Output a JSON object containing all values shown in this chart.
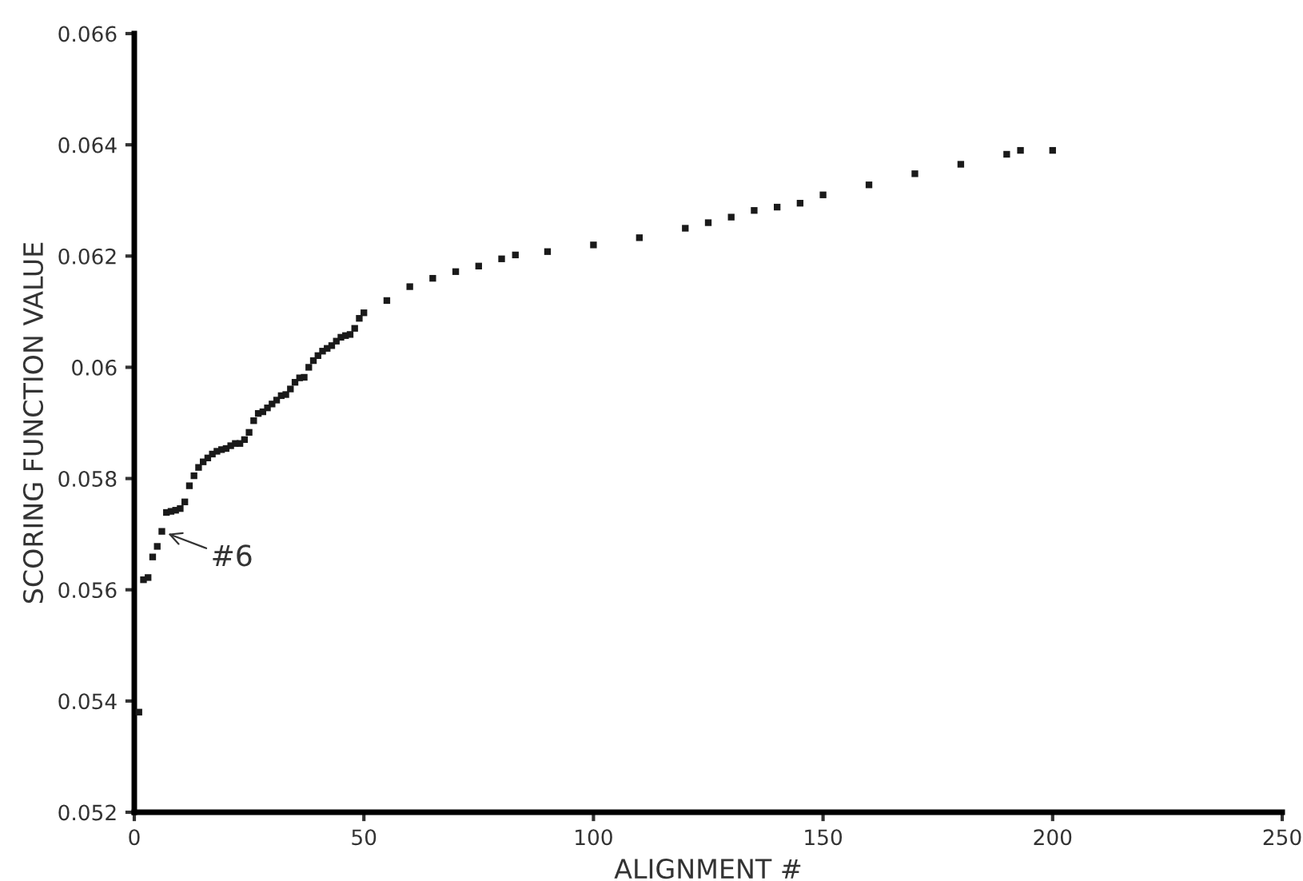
{
  "chart_data": {
    "type": "scatter",
    "xlabel": "ALIGNMENT #",
    "ylabel": "SCORING FUNCTION VALUE",
    "x": [
      1,
      2,
      3,
      4,
      5,
      6,
      7,
      8,
      9,
      10,
      11,
      12,
      13,
      14,
      15,
      16,
      17,
      18,
      19,
      20,
      21,
      22,
      23,
      24,
      25,
      26,
      27,
      28,
      29,
      30,
      31,
      32,
      33,
      34,
      35,
      36,
      37,
      38,
      39,
      40,
      41,
      42,
      43,
      44,
      45,
      46,
      47,
      48,
      49,
      50,
      55,
      60,
      65,
      70,
      75,
      80,
      83,
      90,
      100,
      110,
      120,
      125,
      130,
      135,
      140,
      145,
      150,
      160,
      170,
      180,
      190,
      193,
      200
    ],
    "series": [
      {
        "color": "#1a1a1a",
        "values": [
          0.0538,
          0.05618,
          0.05622,
          0.05659,
          0.05678,
          0.05705,
          0.05739,
          0.05741,
          0.05743,
          0.05746,
          0.05758,
          0.05787,
          0.05805,
          0.0582,
          0.0583,
          0.05837,
          0.05844,
          0.05849,
          0.05852,
          0.05854,
          0.05859,
          0.05863,
          0.05863,
          0.0587,
          0.05883,
          0.05904,
          0.05917,
          0.0592,
          0.05927,
          0.05934,
          0.05941,
          0.05949,
          0.05951,
          0.05961,
          0.05973,
          0.05981,
          0.05982,
          0.06,
          0.06012,
          0.06021,
          0.06029,
          0.06034,
          0.06039,
          0.06047,
          0.06054,
          0.06057,
          0.06059,
          0.0607,
          0.06088,
          0.06098,
          0.0612,
          0.06145,
          0.0616,
          0.06172,
          0.06182,
          0.06195,
          0.06202,
          0.06208,
          0.0622,
          0.06233,
          0.0625,
          0.0626,
          0.0627,
          0.06282,
          0.06288,
          0.06295,
          0.0631,
          0.06328,
          0.06348,
          0.06365,
          0.06383,
          0.0639,
          0.0639
        ]
      }
    ],
    "marker": "square",
    "grid": false,
    "xlim": [
      0,
      250
    ],
    "xticks": [
      0,
      50,
      100,
      150,
      200,
      250
    ],
    "ylim": [
      0.052,
      0.066
    ],
    "yticks": [
      {
        "value": 0.052,
        "label": "0.052"
      },
      {
        "value": 0.054,
        "label": "0.054"
      },
      {
        "value": 0.056,
        "label": "0.056"
      },
      {
        "value": 0.058,
        "label": "0.058"
      },
      {
        "value": 0.06,
        "label": "0.06"
      },
      {
        "value": 0.062,
        "label": "0.062"
      },
      {
        "value": 0.064,
        "label": "0.064"
      },
      {
        "value": 0.066,
        "label": "0.066"
      }
    ],
    "annotations": [
      {
        "text": "#6",
        "x": 6,
        "y": 0.05705
      }
    ]
  }
}
